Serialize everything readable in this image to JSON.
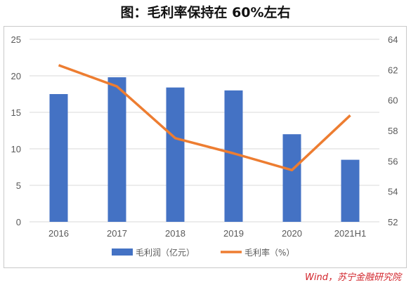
{
  "title": "图：毛利率保持在 60%左右",
  "source": "Wind，苏宁金融研究院",
  "colors": {
    "bar": "#4472c4",
    "line": "#ed7d31",
    "grid": "#d9d9d9",
    "text": "#595959",
    "source": "#d2232a"
  },
  "chart_data": {
    "type": "bar",
    "categories": [
      "2016",
      "2017",
      "2018",
      "2019",
      "2020",
      "2021H1"
    ],
    "series": [
      {
        "name": "毛利润（亿元）",
        "type": "bar",
        "axis": "left",
        "values": [
          17.5,
          19.8,
          18.4,
          18.0,
          12.0,
          8.5
        ]
      },
      {
        "name": "毛利率（%）",
        "type": "line",
        "axis": "right",
        "values": [
          62.3,
          60.9,
          57.5,
          56.5,
          55.4,
          59.0
        ]
      }
    ],
    "y_left": {
      "lim": [
        0,
        25
      ],
      "ticks": [
        "0",
        "5",
        "10",
        "15",
        "20",
        "25"
      ]
    },
    "y_right": {
      "lim": [
        52,
        64
      ],
      "ticks": [
        "52",
        "54",
        "56",
        "58",
        "60",
        "62",
        "64"
      ]
    },
    "grid": true,
    "legend_position": "bottom"
  }
}
